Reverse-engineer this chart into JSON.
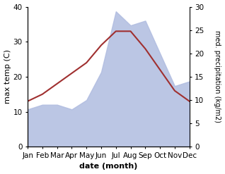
{
  "months": [
    "Jan",
    "Feb",
    "Mar",
    "Apr",
    "May",
    "Jun",
    "Jul",
    "Aug",
    "Sep",
    "Oct",
    "Nov",
    "Dec"
  ],
  "month_indices": [
    0,
    1,
    2,
    3,
    4,
    5,
    6,
    7,
    8,
    9,
    10,
    11
  ],
  "temp_max": [
    13,
    15,
    18,
    21,
    24,
    29,
    33,
    33,
    28,
    22,
    16,
    13
  ],
  "precipitation": [
    8,
    9,
    9,
    8,
    10,
    16,
    29,
    26,
    27,
    20,
    13,
    14
  ],
  "temp_color": "#a03030",
  "precip_color": "#b0bce0",
  "temp_ylim": [
    0,
    40
  ],
  "precip_ylim": [
    0,
    30
  ],
  "xlabel": "date (month)",
  "ylabel_left": "max temp (C)",
  "ylabel_right": "med. precipitation (kg/m2)",
  "bg_color": "#ffffff",
  "plot_bg": "#ffffff",
  "label_fontsize": 8,
  "tick_fontsize": 7.5
}
